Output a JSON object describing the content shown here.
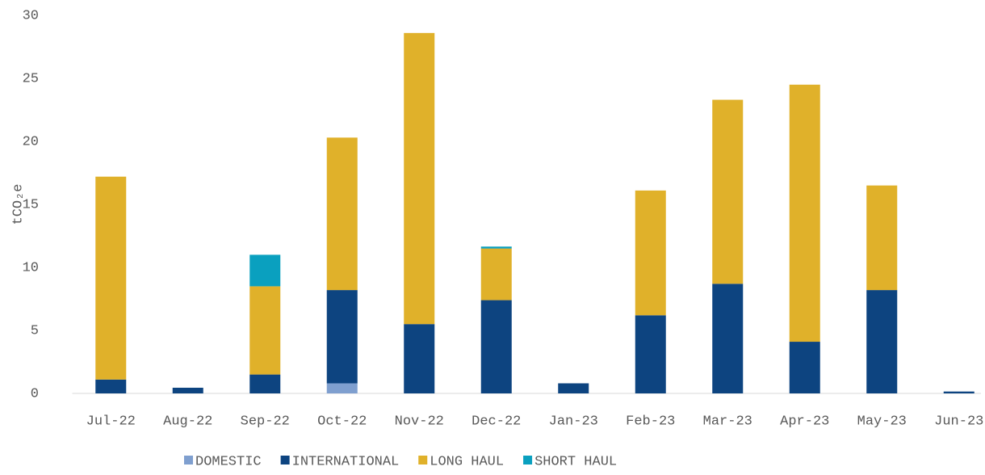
{
  "chart_data": {
    "type": "stacked_bar",
    "y_label": "tCO₂e",
    "categories": [
      "Jul-22",
      "Aug-22",
      "Sep-22",
      "Oct-22",
      "Nov-22",
      "Dec-22",
      "Jan-23",
      "Feb-23",
      "Mar-23",
      "Apr-23",
      "May-23",
      "Jun-23"
    ],
    "series": [
      {
        "name": "DOMESTIC",
        "color": "#7f9fcf",
        "values": [
          0,
          0,
          0,
          0.8,
          0,
          0,
          0,
          0,
          0,
          0,
          0,
          0
        ]
      },
      {
        "name": "INTERNATIONAL",
        "color": "#0d4480",
        "values": [
          1.1,
          0.45,
          1.5,
          7.4,
          5.5,
          7.4,
          0.8,
          6.2,
          8.7,
          4.1,
          8.2,
          0.15
        ]
      },
      {
        "name": "LONG HAUL",
        "color": "#e0b12a",
        "values": [
          16.1,
          0,
          7.0,
          12.1,
          23.1,
          4.1,
          0,
          9.9,
          14.6,
          20.4,
          8.3,
          0
        ]
      },
      {
        "name": "SHORT HAUL",
        "color": "#0aa0bf",
        "values": [
          0,
          0,
          2.5,
          0,
          0,
          0.15,
          0,
          0,
          0,
          0,
          0,
          0
        ]
      }
    ],
    "ylim": [
      0,
      30
    ],
    "yticks": [
      0,
      5,
      10,
      15,
      20,
      25,
      30
    ],
    "legend": "bottom"
  }
}
